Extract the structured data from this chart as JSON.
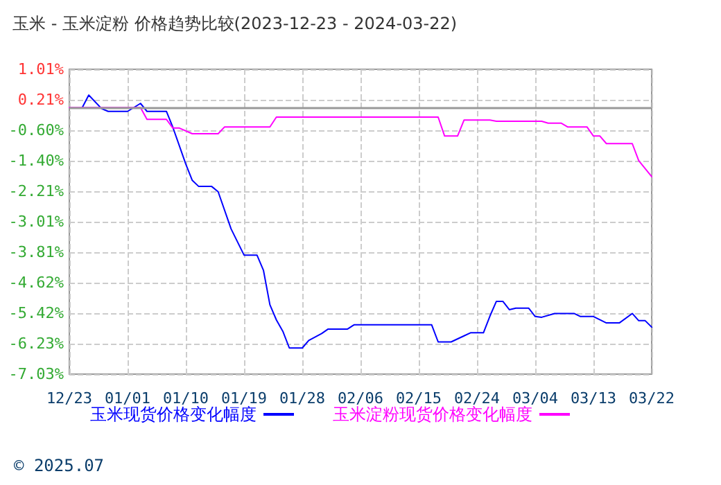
{
  "chart_data": {
    "type": "line",
    "title": "玉米 - 玉米淀粉 价格趋势比较(2023-12-23 - 2024-03-22)",
    "xlim": [
      "2023-12-23",
      "2024-03-22"
    ],
    "xticks": [
      {
        "value": "2023-12-23",
        "label": "12/23"
      },
      {
        "value": "2024-01-01",
        "label": "01/01"
      },
      {
        "value": "2024-01-10",
        "label": "01/10"
      },
      {
        "value": "2024-01-19",
        "label": "01/19"
      },
      {
        "value": "2024-01-28",
        "label": "01/28"
      },
      {
        "value": "2024-02-06",
        "label": "02/06"
      },
      {
        "value": "2024-02-15",
        "label": "02/15"
      },
      {
        "value": "2024-02-24",
        "label": "02/24"
      },
      {
        "value": "2024-03-04",
        "label": "03/04"
      },
      {
        "value": "2024-03-13",
        "label": "03/13"
      },
      {
        "value": "2024-03-22",
        "label": "03/22"
      }
    ],
    "ylim": [
      -7.03,
      1.01
    ],
    "yticks": [
      {
        "value": 1.01,
        "label": "1.01%"
      },
      {
        "value": 0.21,
        "label": "0.21%"
      },
      {
        "value": -0.6,
        "label": "-0.60%"
      },
      {
        "value": -1.4,
        "label": "-1.40%"
      },
      {
        "value": -2.21,
        "label": "-2.21%"
      },
      {
        "value": -3.01,
        "label": "-3.01%"
      },
      {
        "value": -3.81,
        "label": "-3.81%"
      },
      {
        "value": -4.62,
        "label": "-4.62%"
      },
      {
        "value": -5.42,
        "label": "-5.42%"
      },
      {
        "value": -6.23,
        "label": "-6.23%"
      },
      {
        "value": -7.03,
        "label": "-7.03%"
      }
    ],
    "series": [
      {
        "name": "玉米现货价格变化幅度",
        "color": "#0000ff",
        "x": [
          "2023-12-25",
          "2023-12-26",
          "2023-12-28",
          "2023-12-29",
          "2024-01-01",
          "2024-01-03",
          "2024-01-04",
          "2024-01-07",
          "2024-01-08",
          "2024-01-10",
          "2024-01-11",
          "2024-01-12",
          "2024-01-14",
          "2024-01-15",
          "2024-01-17",
          "2024-01-19",
          "2024-01-21",
          "2024-01-22",
          "2024-01-23",
          "2024-01-24",
          "2024-01-25",
          "2024-01-26",
          "2024-01-28",
          "2024-01-29",
          "2024-01-31",
          "2024-02-01",
          "2024-02-04",
          "2024-02-05",
          "2024-02-17",
          "2024-02-18",
          "2024-02-20",
          "2024-02-22",
          "2024-02-23",
          "2024-02-25",
          "2024-02-26",
          "2024-02-27",
          "2024-02-28",
          "2024-02-29",
          "2024-03-01",
          "2024-03-03",
          "2024-03-04",
          "2024-03-05",
          "2024-03-07",
          "2024-03-10",
          "2024-03-11",
          "2024-03-13",
          "2024-03-15",
          "2024-03-17",
          "2024-03-19",
          "2024-03-20",
          "2024-03-21",
          "2024-03-22"
        ],
        "values": [
          0,
          0.33,
          -0.03,
          -0.1,
          -0.1,
          0.11,
          -0.1,
          -0.1,
          -0.52,
          -1.49,
          -1.92,
          -2.08,
          -2.08,
          -2.22,
          -3.2,
          -3.89,
          -3.89,
          -4.29,
          -5.2,
          -5.6,
          -5.9,
          -6.34,
          -6.34,
          -6.14,
          -5.96,
          -5.84,
          -5.84,
          -5.73,
          -5.73,
          -6.18,
          -6.18,
          -6.02,
          -5.94,
          -5.94,
          -5.5,
          -5.11,
          -5.11,
          -5.33,
          -5.29,
          -5.29,
          -5.51,
          -5.53,
          -5.43,
          -5.43,
          -5.51,
          -5.51,
          -5.68,
          -5.68,
          -5.43,
          -5.62,
          -5.62,
          -5.79
        ]
      },
      {
        "name": "玉米淀粉现货价格变化幅度",
        "color": "#ff00ff",
        "x": [
          "2023-12-23",
          "2024-01-03",
          "2024-01-04",
          "2024-01-07",
          "2024-01-08",
          "2024-01-09",
          "2024-01-11",
          "2024-01-15",
          "2024-01-16",
          "2024-01-23",
          "2024-01-24",
          "2024-02-18",
          "2024-02-19",
          "2024-02-21",
          "2024-02-22",
          "2024-02-26",
          "2024-02-27",
          "2024-03-05",
          "2024-03-06",
          "2024-03-08",
          "2024-03-09",
          "2024-03-12",
          "2024-03-13",
          "2024-03-14",
          "2024-03-15",
          "2024-03-19",
          "2024-03-20",
          "2024-03-22"
        ],
        "values": [
          0,
          0,
          -0.31,
          -0.31,
          -0.54,
          -0.54,
          -0.69,
          -0.69,
          -0.51,
          -0.51,
          -0.25,
          -0.25,
          -0.75,
          -0.75,
          -0.33,
          -0.33,
          -0.36,
          -0.36,
          -0.41,
          -0.41,
          -0.51,
          -0.51,
          -0.75,
          -0.75,
          -0.95,
          -0.95,
          -1.4,
          -1.82
        ]
      }
    ],
    "ref_lines": [
      {
        "axis": "y",
        "value": 0,
        "color": "#999999"
      }
    ],
    "grid": true,
    "legend": "bottom",
    "marker": "none",
    "line_style": "solid",
    "annotations": [
      "© 2025.07"
    ]
  }
}
